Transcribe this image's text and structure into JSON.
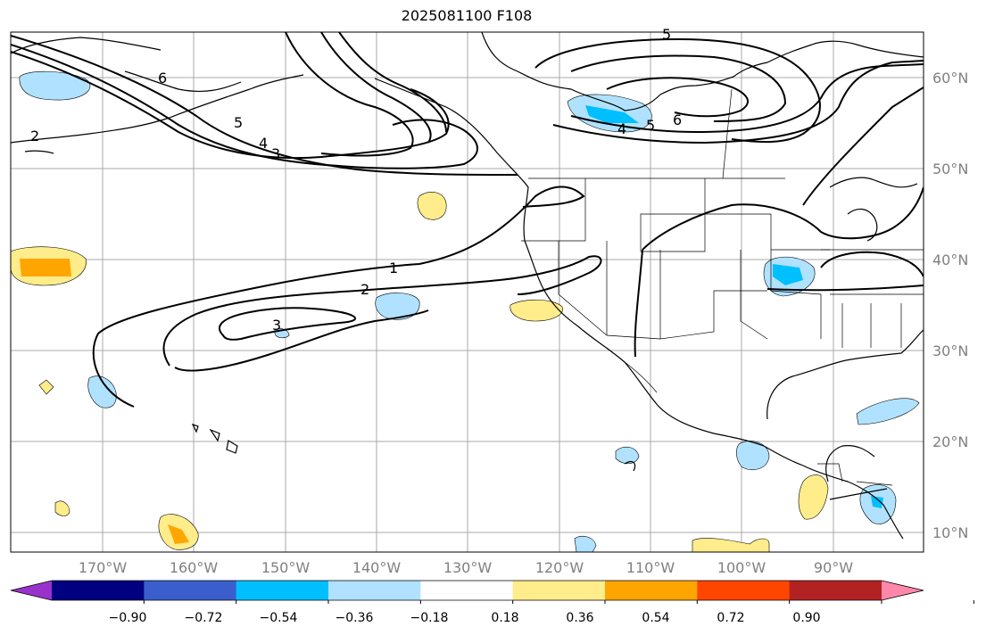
{
  "title": "2025081100 F108",
  "lat_labels": [
    "60°N",
    "50°N",
    "40°N",
    "30°N",
    "20°N",
    "10°N"
  ],
  "lon_labels": [
    "170°W",
    "160°W",
    "150°W",
    "140°W",
    "130°W",
    "120°W",
    "110°W",
    "100°W",
    "90°W"
  ],
  "colorbar": {
    "colors": [
      "#9932cc",
      "#000080",
      "#3a5fcd",
      "#00bfff",
      "#b0e2ff",
      "#ffffff",
      "#ffec8b",
      "#ffa500",
      "#ff4500",
      "#b22222",
      "#ff88aa"
    ],
    "tick_labels": [
      "−0.90",
      "−0.72",
      "−0.54",
      "−0.36",
      "−0.18",
      "0.18",
      "0.36",
      "0.54",
      "0.72",
      "0.90"
    ]
  },
  "contour_labels": [
    "1",
    "2",
    "3",
    "2",
    "3",
    "4",
    "5",
    "6",
    "4",
    "5",
    "6",
    "5"
  ]
}
